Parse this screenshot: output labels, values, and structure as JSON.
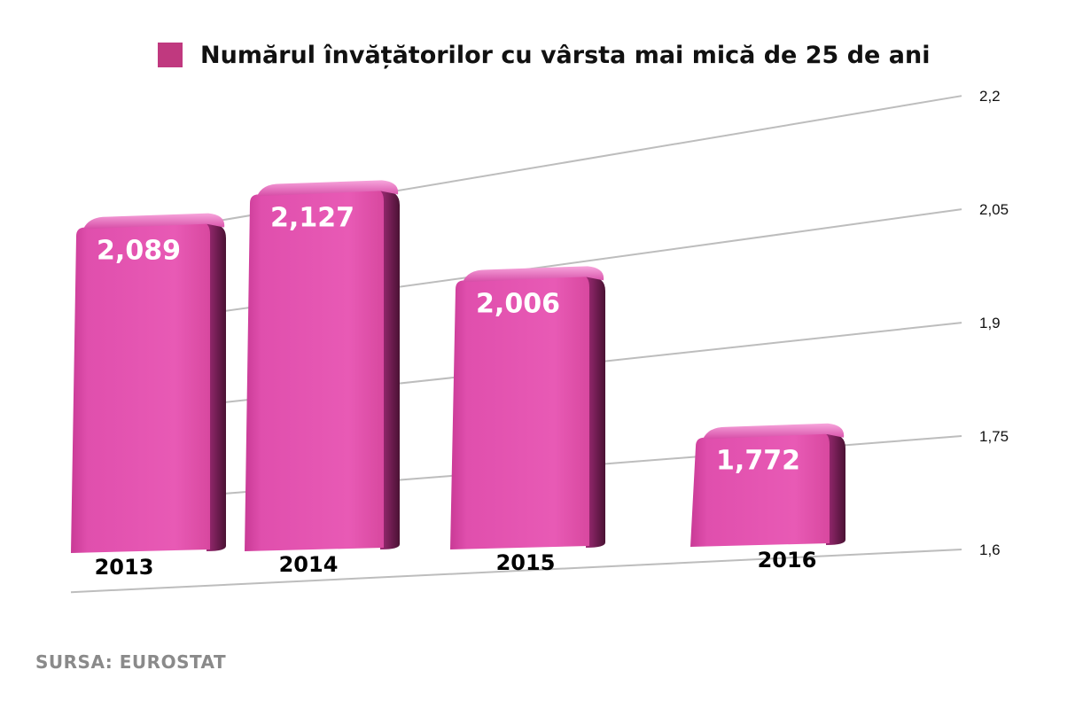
{
  "chart_data": {
    "type": "bar",
    "title": "",
    "categories": [
      "2013",
      "2014",
      "2015",
      "2016"
    ],
    "series": [
      {
        "name": "Numărul învățătorilor cu vârsta mai mică de 25 de ani",
        "values": [
          2.089,
          2.127,
          2.006,
          1.772
        ],
        "color": "#e04fad"
      }
    ],
    "data_labels": [
      "2,089",
      "2,127",
      "2,006",
      "1,772"
    ],
    "ylim": [
      1.6,
      2.2
    ],
    "yticks": [
      1.6,
      1.75,
      1.9,
      2.05,
      2.2
    ],
    "ytick_labels": [
      "1,6",
      "1,75",
      "1,9",
      "2,05",
      "2,2"
    ],
    "y_axis_side": "right",
    "legend_position": "top",
    "grid": true,
    "style": "3d"
  },
  "footer": {
    "source": "SURSA: EUROSTAT"
  }
}
